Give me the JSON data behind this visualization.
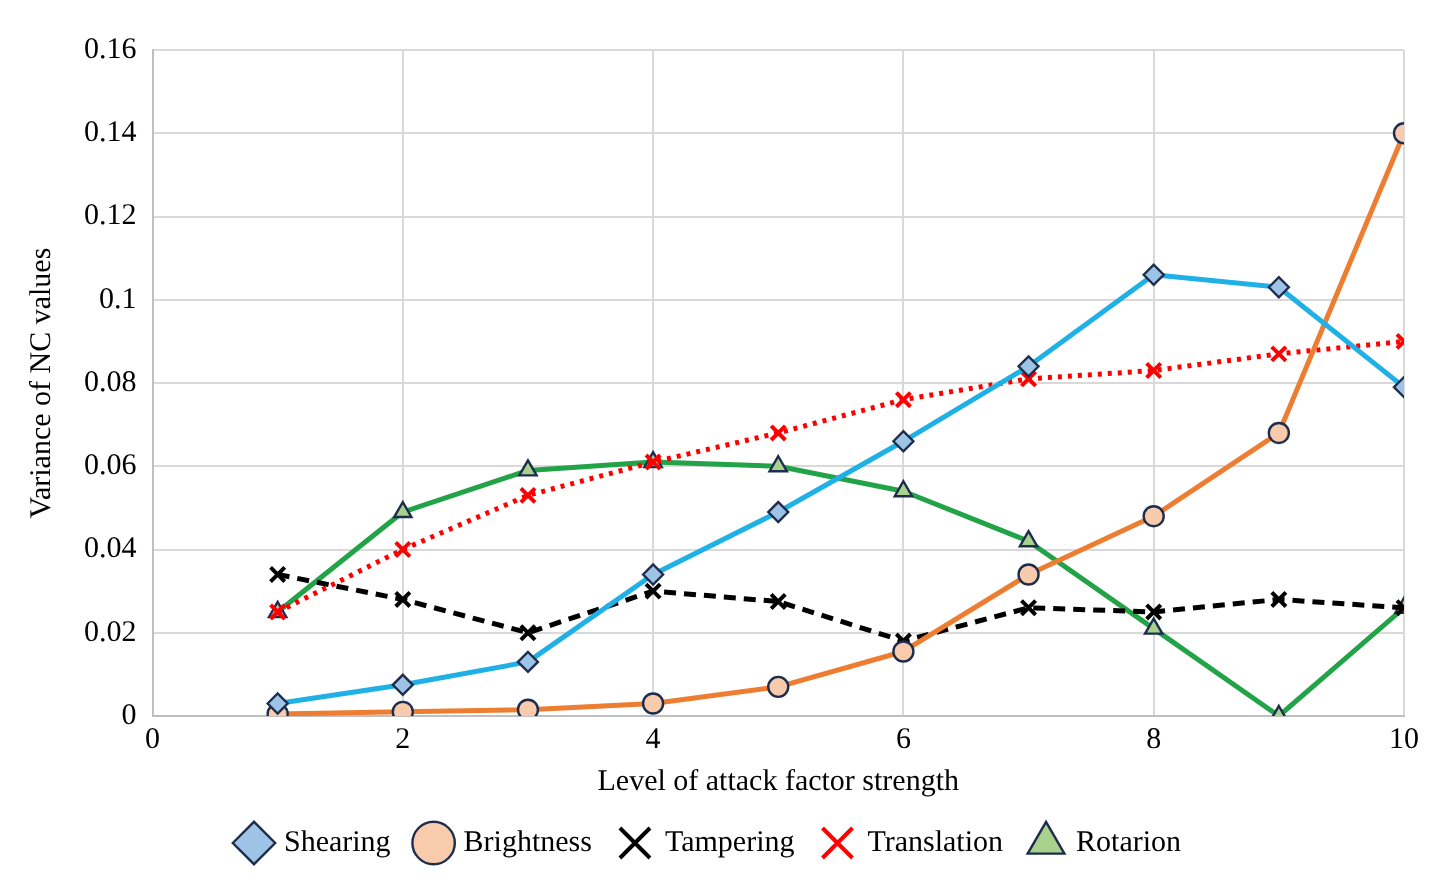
{
  "chart_data": {
    "type": "line",
    "xlabel": "Level of attack factor strength",
    "ylabel": "Variance of NC values",
    "x": [
      1,
      2,
      3,
      4,
      5,
      6,
      7,
      8,
      9,
      10
    ],
    "xlim": [
      0,
      10
    ],
    "xticks": [
      0,
      2,
      4,
      6,
      8,
      10
    ],
    "ylim": [
      0,
      0.16
    ],
    "yticks": [
      0,
      0.02,
      0.04,
      0.06,
      0.08,
      0.1,
      0.12,
      0.14,
      0.16
    ],
    "grid": true,
    "legend": "bottom",
    "series": [
      {
        "name": "Shearing",
        "color": "#1fb0e6",
        "marker": "diamond",
        "line_style": "solid",
        "values": [
          0.003,
          0.0075,
          0.013,
          0.034,
          0.049,
          0.066,
          0.084,
          0.106,
          0.103,
          0.079
        ]
      },
      {
        "name": "Brightness",
        "color": "#ed7d31",
        "marker": "circle",
        "line_style": "solid",
        "values": [
          0.0005,
          0.001,
          0.0015,
          0.003,
          0.007,
          0.0155,
          0.034,
          0.048,
          0.068,
          0.14
        ]
      },
      {
        "name": "Tampering",
        "color": "#000000",
        "marker": "cross",
        "line_style": "dashed",
        "values": [
          0.034,
          0.028,
          0.02,
          0.03,
          0.0275,
          0.018,
          0.026,
          0.025,
          0.028,
          0.026
        ]
      },
      {
        "name": "Translation",
        "color": "#ff0000",
        "marker": "cross",
        "line_style": "dotted",
        "values": [
          0.025,
          0.04,
          0.053,
          0.061,
          0.068,
          0.076,
          0.081,
          0.083,
          0.087,
          0.09
        ]
      },
      {
        "name": "Rotarion",
        "color": "#22a347",
        "marker": "triangle",
        "line_style": "solid",
        "values": [
          0.025,
          0.049,
          0.059,
          0.061,
          0.06,
          0.054,
          0.042,
          0.021,
          0,
          0.026
        ]
      }
    ]
  }
}
